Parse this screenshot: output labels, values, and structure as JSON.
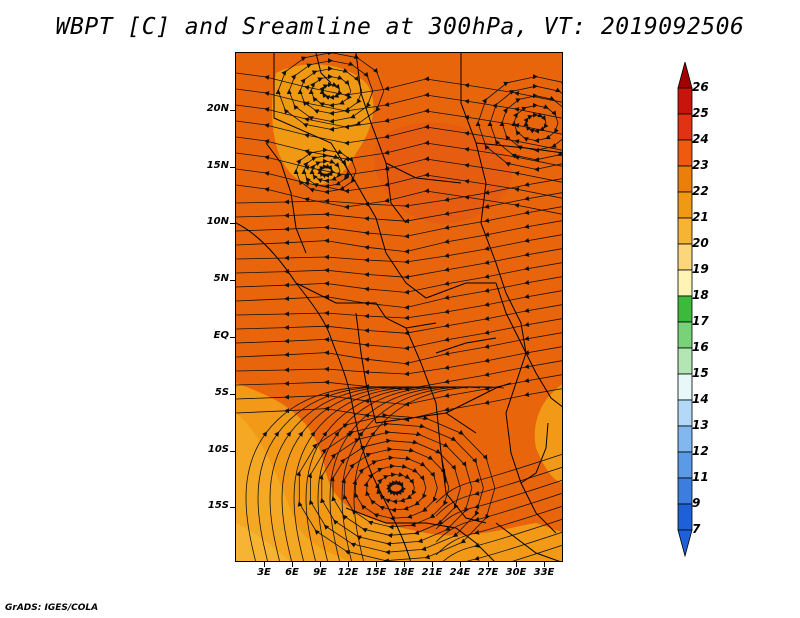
{
  "title": "WBPT [C] and Sreamline at 300hPa, VT: 2019092506",
  "footer": "GrADS: IGES/COLA",
  "map": {
    "lat_labels": [
      "20N",
      "15N",
      "10N",
      "5N",
      "EQ",
      "5S",
      "10S",
      "15S"
    ],
    "lon_labels": [
      "3E",
      "6E",
      "9E",
      "12E",
      "15E",
      "18E",
      "21E",
      "24E",
      "27E",
      "30E",
      "33E"
    ]
  },
  "colorbar": {
    "levels": [
      "26",
      "25",
      "24",
      "23",
      "22",
      "21",
      "20",
      "19",
      "18",
      "17",
      "16",
      "15",
      "14",
      "13",
      "12",
      "11",
      "9",
      "7"
    ],
    "colors": [
      "#a50000",
      "#c8140a",
      "#e13214",
      "#f05a0f",
      "#ec7e0a",
      "#f09a14",
      "#f7b432",
      "#fbd77a",
      "#fff4b4",
      "#3cba3c",
      "#78d278",
      "#b4e6b4",
      "#e8f8f8",
      "#b4d8f8",
      "#82b8f0",
      "#5a9ae6",
      "#3c7ee0",
      "#1e60d8"
    ]
  },
  "colors": {
    "field_main": "#e8650c",
    "field_warm": "#f5a01e",
    "field_hot": "#e0501a",
    "streamline": "#111111",
    "border": "#000000"
  }
}
